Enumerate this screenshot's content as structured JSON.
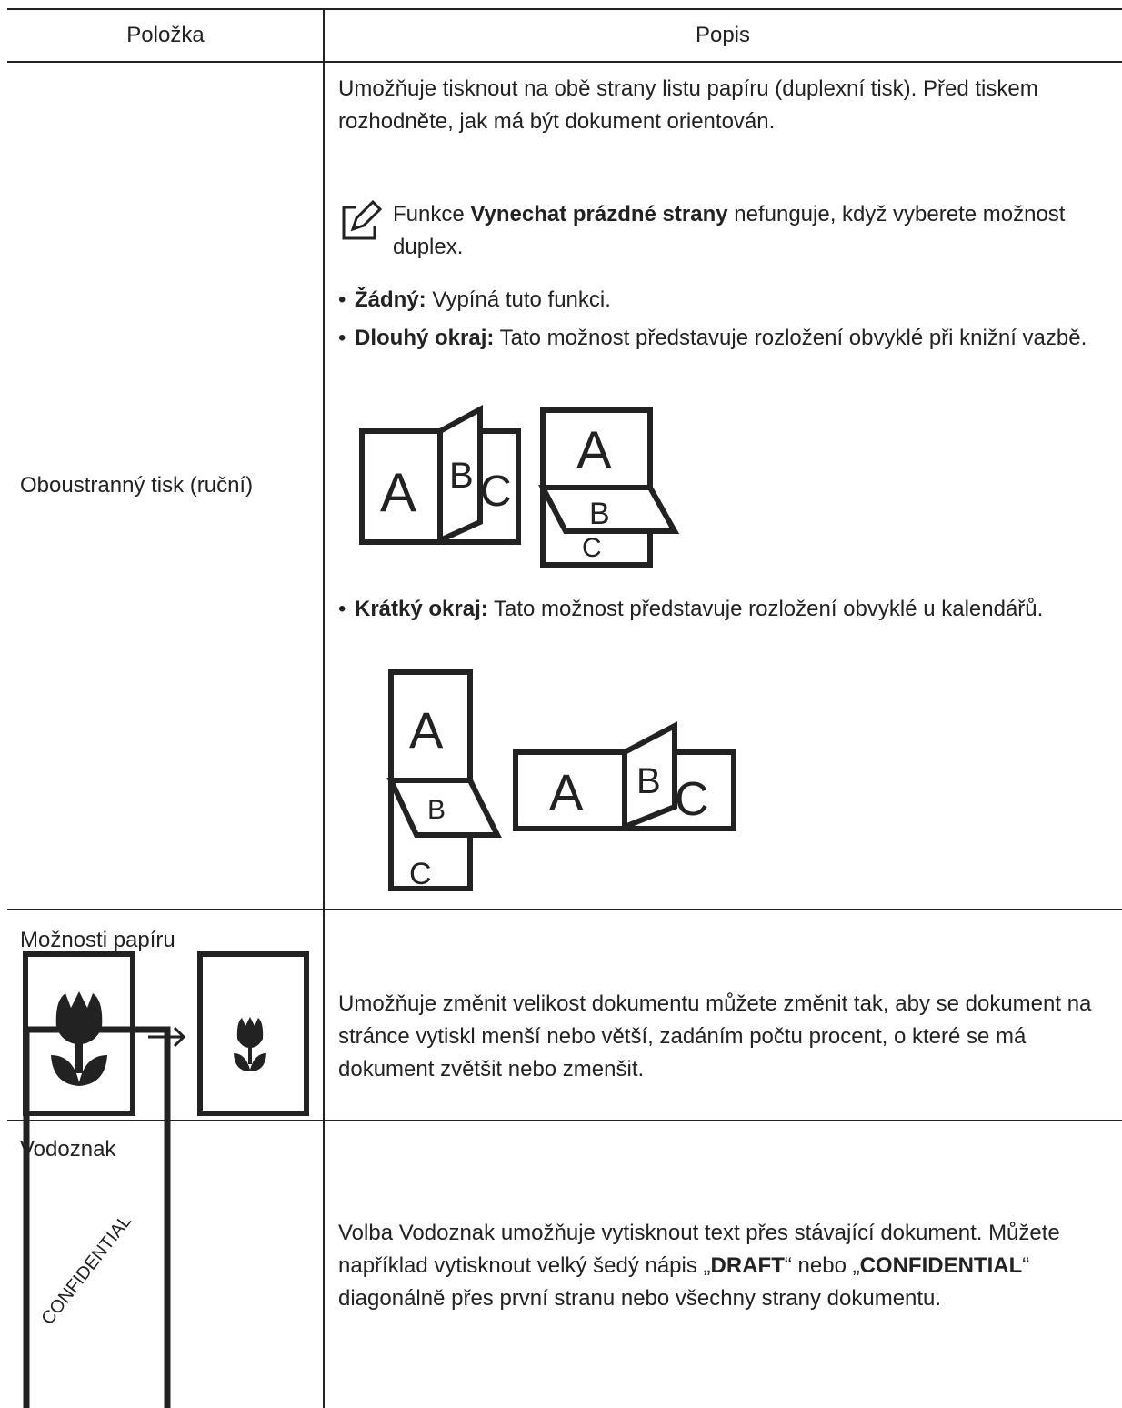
{
  "table": {
    "header": [
      "Položka",
      "Popis"
    ],
    "rows": [
      {
        "item": "Oboustranný tisk (ruční)",
        "description": "Umožňuje tisknout na obě strany listu papíru (duplexní tisk). Před tiskem rozhodněte, jak má být dokument orientován.",
        "note": {
          "prefix": "Funkce ",
          "bold": "Vynechat prázdné strany",
          "suffix": " nefunguje, když vyberete možnost duplex."
        },
        "options": [
          {
            "label": "Žádný:",
            "text": " Vypíná tuto funkci."
          },
          {
            "label": "Dlouhý okraj:",
            "text": " Tato možnost představuje rozložení obvyklé při knižní vazbě."
          },
          {
            "label": "Krátký okraj:",
            "text": " Tato možnost představuje rozložení obvyklé u kalendářů."
          }
        ]
      },
      {
        "item": "Možnosti papíru",
        "description": "Umožňuje změnit velikost dokumentu můžete změnit tak, aby se dokument na stránce vytiskl menší nebo větší, zadáním počtu procent, o které se má dokument zvětšit nebo zmenšit."
      },
      {
        "item": "Vodoznak",
        "description_parts": [
          {
            "text": "Volba Vodoznak umožňuje vytisknout text přes stávající dokument. Můžete například vytisknout velký šedý nápis „"
          },
          {
            "text": "DRAFT",
            "bold": true
          },
          {
            "text": "“ nebo „"
          },
          {
            "text": "CONFIDENTIAL",
            "bold": true
          },
          {
            "text": "“ diagonálně přes první stranu nebo všechny strany dokumentu."
          }
        ]
      }
    ]
  },
  "illustration_letters": [
    "A",
    "B",
    "C"
  ],
  "watermark_text": "CONFIDENTIAL"
}
